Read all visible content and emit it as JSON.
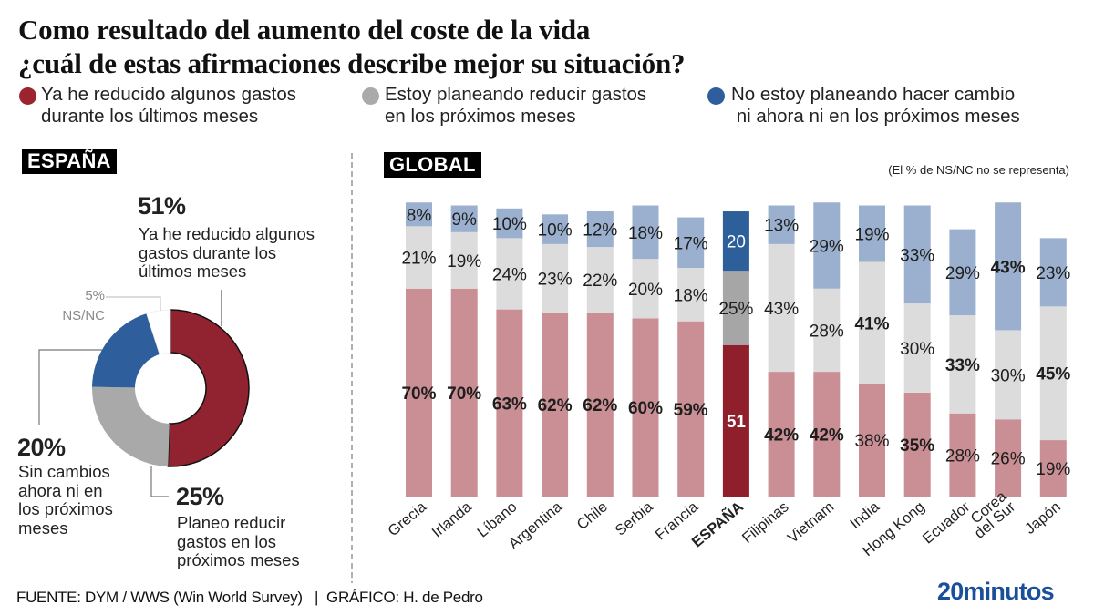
{
  "title": {
    "line1": "Como resultado del aumento del coste de la vida",
    "line2": "¿cuál de estas afirmaciones describe mejor su situación?"
  },
  "legend": [
    {
      "line1": "Ya he reducido algunos gastos",
      "line2": "durante los últimos meses",
      "color": "#9b2430",
      "icon": "red-circle-icon"
    },
    {
      "line1": "Estoy planeando reducir gastos",
      "line2": "en los próximos meses",
      "color": "#aaaaaa",
      "icon": "gray-circle-icon"
    },
    {
      "line1": "No estoy planeando hacer cambio",
      "line2": " ni ahora ni en los próximos meses",
      "color": "#2e5f9c",
      "icon": "blue-circle-icon"
    }
  ],
  "spain": {
    "tag": "ESPAÑA",
    "reduced": {
      "pct": "51%",
      "lines": [
        "Ya he reducido algunos",
        "gastos durante los",
        "últimos meses"
      ]
    },
    "nsnc": {
      "pct": "5%",
      "label": "NS/NC"
    },
    "no_change": {
      "pct": "20%",
      "lines": [
        "Sin cambios",
        "ahora ni en",
        "los próximos",
        "meses"
      ]
    },
    "planning": {
      "pct": "25%",
      "lines": [
        "Planeo reducir",
        "gastos en los",
        "próximos meses"
      ]
    }
  },
  "global": {
    "tag": "GLOBAL",
    "note": "(El % de NS/NC no se representa)"
  },
  "footer": {
    "text": "FUENTE: DYM / WWS (Win World Survey)   |  GRÁFICO: H. de Pedro"
  },
  "logo": "20minutos",
  "chart_data": [
    {
      "type": "pie",
      "title": "ESPAÑA",
      "donut": true,
      "labels": [
        "Ya he reducido algunos gastos durante los últimos meses",
        "Planeo reducir gastos en los próximos meses",
        "Sin cambios ahora ni en los próximos meses",
        "NS/NC"
      ],
      "values": [
        51,
        25,
        20,
        5
      ],
      "colors": [
        "#912330",
        "#a9a9a9",
        "#2e5f9c",
        "#ffffff"
      ],
      "start": "top",
      "direction": "clockwise"
    },
    {
      "type": "bar",
      "stacked": true,
      "title": "GLOBAL",
      "note": "(El % de NS/NC no se representa)",
      "categories": [
        "Grecia",
        "Irlanda",
        "Líbano",
        "Argentina",
        "Chile",
        "Serbia",
        "Francia",
        "ESPAÑA",
        "Filipinas",
        "Vietnam",
        "India",
        "Hong Kong",
        "Ecuador",
        "Corea del Sur",
        "Japón"
      ],
      "category_lines": [
        [
          "Grecia"
        ],
        [
          "Irlanda"
        ],
        [
          "Líbano"
        ],
        [
          "Argentina"
        ],
        [
          "Chile"
        ],
        [
          "Serbia"
        ],
        [
          "Francia"
        ],
        [
          "ESPAÑA"
        ],
        [
          "Filipinas"
        ],
        [
          "Vietnam"
        ],
        [
          "India"
        ],
        [
          "Hong Kong"
        ],
        [
          "Ecuador"
        ],
        [
          "Corea",
          "del Sur"
        ],
        [
          "Japón"
        ]
      ],
      "highlight": "ESPAÑA",
      "series": [
        {
          "name": "Ya he reducido algunos gastos durante los últimos meses",
          "values": [
            70,
            70,
            63,
            62,
            62,
            60,
            59,
            51,
            42,
            42,
            38,
            35,
            28,
            26,
            19
          ],
          "labels": [
            "70%",
            "70%",
            "63%",
            "62%",
            "62%",
            "60%",
            "59%",
            "51",
            "42%",
            "42%",
            "38%",
            "35%",
            "28%",
            "26%",
            "19%"
          ],
          "bold": [
            true,
            true,
            true,
            true,
            true,
            true,
            true,
            true,
            true,
            true,
            false,
            true,
            false,
            false,
            false
          ],
          "color": "#c98f94",
          "highlight_color": "#8f1f2b"
        },
        {
          "name": "Estoy planeando reducir gastos en los próximos meses",
          "values": [
            21,
            19,
            24,
            23,
            22,
            20,
            18,
            25,
            43,
            28,
            41,
            30,
            33,
            30,
            45
          ],
          "labels": [
            "21%",
            "19%",
            "24%",
            "23%",
            "22%",
            "20%",
            "18%",
            "25%",
            "43%",
            "28%",
            "41%",
            "30%",
            "33%",
            "30%",
            "45%"
          ],
          "bold": [
            false,
            false,
            false,
            false,
            false,
            false,
            false,
            false,
            false,
            false,
            true,
            false,
            true,
            false,
            true
          ],
          "color": "#dcdcdc",
          "highlight_color": "#a6a6a6"
        },
        {
          "name": "No estoy planeando hacer cambio ni ahora ni en los próximos meses",
          "values": [
            8,
            9,
            10,
            10,
            12,
            18,
            17,
            20,
            13,
            29,
            19,
            33,
            29,
            43,
            23
          ],
          "labels": [
            "8%",
            "9%",
            "10%",
            "10%",
            "12%",
            "18%",
            "17%",
            "20",
            "13%",
            "29%",
            "19%",
            "33%",
            "29%",
            "43%",
            "23%"
          ],
          "bold": [
            false,
            false,
            false,
            false,
            false,
            false,
            false,
            false,
            false,
            false,
            false,
            false,
            false,
            true,
            false
          ],
          "color": "#9bb0cf",
          "highlight_color": "#2d5f9b"
        }
      ],
      "ylim": [
        0,
        100
      ],
      "grid": false,
      "xlabel": "",
      "ylabel": ""
    }
  ]
}
